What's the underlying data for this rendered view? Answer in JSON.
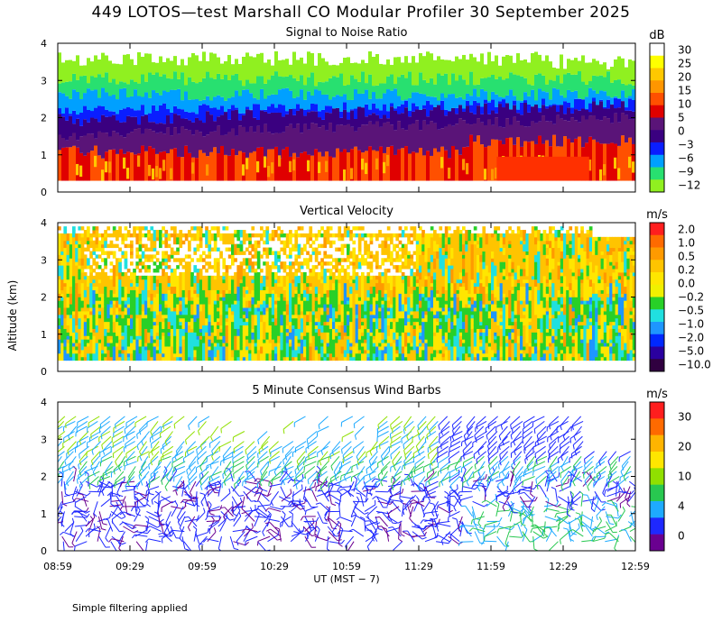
{
  "title": "449 LOTOS—test Marshall CO Modular Profiler 30 September 2025",
  "y_axis_label": "Altitude (km)",
  "x_axis_label": "UT  (MST − 7)",
  "footnote": "Simple filtering applied",
  "chart_data": [
    {
      "type": "heatmap",
      "title": "Signal to Noise Ratio",
      "unit": "dB",
      "ylim": [
        0,
        4
      ],
      "yticks": [
        "0",
        "1",
        "2",
        "3",
        "4"
      ],
      "xticks": [
        "08:59",
        "09:29",
        "09:59",
        "10:29",
        "10:59",
        "11:29",
        "11:59",
        "12:29",
        "12:59"
      ],
      "colorbar": {
        "labels": [
          "30",
          "25",
          "20",
          "15",
          "10",
          "5",
          "0",
          "−3",
          "−6",
          "−9",
          "−12"
        ],
        "colors": [
          "#ffffff",
          "#ffff00",
          "#ffc800",
          "#ff9600",
          "#ff5000",
          "#e00000",
          "#5a1478",
          "#3a0080",
          "#0a1eff",
          "#00a0ff",
          "#28e070",
          "#90f020"
        ]
      },
      "layers": [
        {
          "from_km": 0.3,
          "to_km": 1.0,
          "snr_db": 10
        },
        {
          "from_km": 1.0,
          "to_km": 1.5,
          "snr_db": 2
        },
        {
          "from_km": 1.5,
          "to_km": 2.2,
          "snr_db": -3
        },
        {
          "from_km": 2.2,
          "to_km": 2.6,
          "snr_db": -6
        },
        {
          "from_km": 2.6,
          "to_km": 3.0,
          "snr_db": -9
        },
        {
          "from_km": 3.0,
          "to_km": 4.0,
          "snr_db": -12
        }
      ]
    },
    {
      "type": "heatmap",
      "title": "Vertical Velocity",
      "unit": "m/s",
      "ylim": [
        0,
        4
      ],
      "yticks": [
        "0",
        "1",
        "2",
        "3",
        "4"
      ],
      "colorbar": {
        "labels": [
          "2.0",
          "1.0",
          "0.5",
          "0.2",
          "0.0",
          "−0.2",
          "−0.5",
          "−1.0",
          "−2.0",
          "−5.0",
          "−10.0"
        ],
        "colors": [
          "#ff1e1e",
          "#ff6a00",
          "#ff9a00",
          "#ffc400",
          "#ffe600",
          "#f0f000",
          "#28d028",
          "#20e0e0",
          "#1e96ff",
          "#0028ff",
          "#2a00a0",
          "#300040"
        ]
      },
      "dominant_values": [
        0.2,
        0.0,
        -0.2,
        -0.5,
        0.5
      ]
    },
    {
      "type": "wind_barbs",
      "title": "5 Minute Consensus Wind Barbs",
      "unit": "m/s",
      "ylim": [
        0,
        4
      ],
      "yticks": [
        "0",
        "1",
        "2",
        "3",
        "4"
      ],
      "colorbar": {
        "labels": [
          "30",
          "20",
          "10",
          "4",
          "0"
        ],
        "colors": [
          "#ff1e1e",
          "#ff6a00",
          "#ffb400",
          "#ffe600",
          "#90e000",
          "#28c850",
          "#1eaaff",
          "#1e28ff",
          "#6a0090"
        ]
      },
      "layers": [
        {
          "from_km": 0.3,
          "to_km": 2.0,
          "speed_ms": 2,
          "direction_deg": 200
        },
        {
          "from_km": 2.0,
          "to_km": 2.6,
          "speed_ms": 6,
          "direction_deg": 250
        },
        {
          "from_km": 2.6,
          "to_km": 3.6,
          "speed_ms": 8,
          "direction_deg": 260
        }
      ]
    }
  ]
}
